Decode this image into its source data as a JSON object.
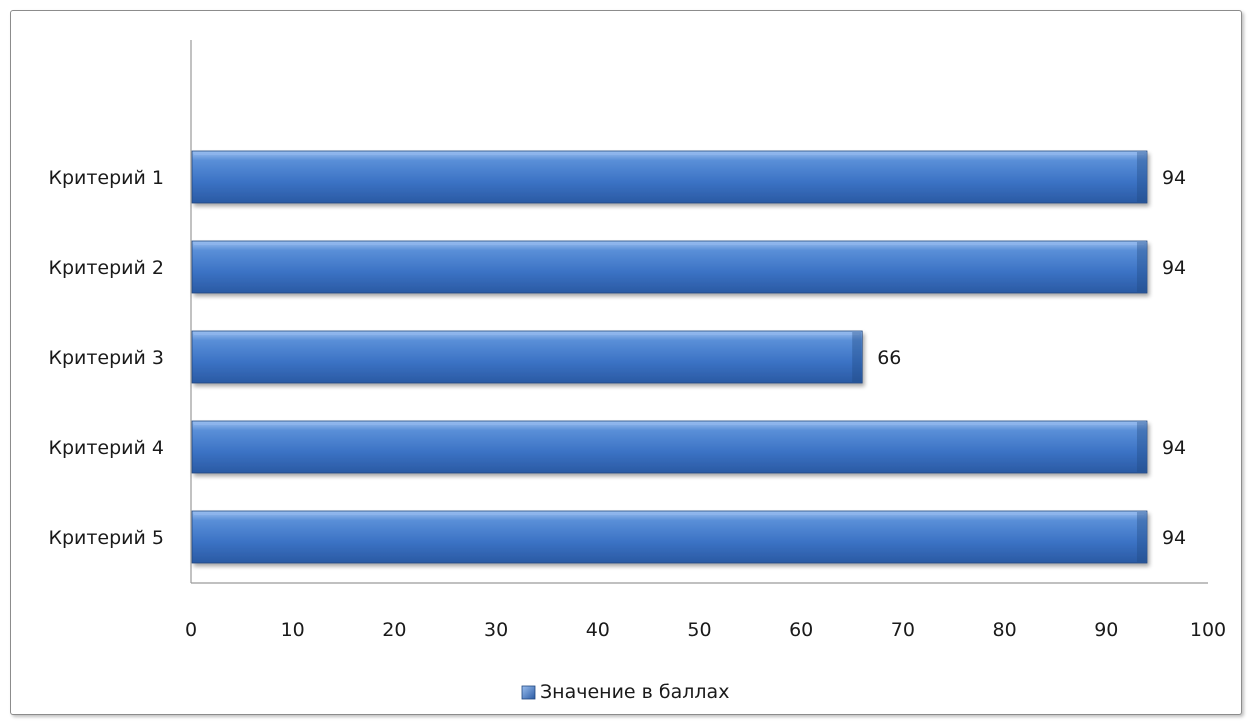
{
  "chart_data": {
    "type": "bar",
    "orientation": "horizontal",
    "categories": [
      "Критерий 1",
      "Критерий 2",
      "Критерий 3",
      "Критерий 4",
      "Критерий 5"
    ],
    "series": [
      {
        "name": "Значение в баллах",
        "values": [
          94,
          94,
          66,
          94,
          94
        ]
      }
    ],
    "xlim": [
      0,
      100
    ],
    "xticks": [
      0,
      10,
      20,
      30,
      40,
      50,
      60,
      70,
      80,
      90,
      100
    ],
    "grid": false,
    "legend": "bottom",
    "data_labels": true,
    "colors": {
      "bar": "#3f78c8",
      "bar_dark": "#20477f",
      "bar_light": "#8db4ec"
    }
  }
}
